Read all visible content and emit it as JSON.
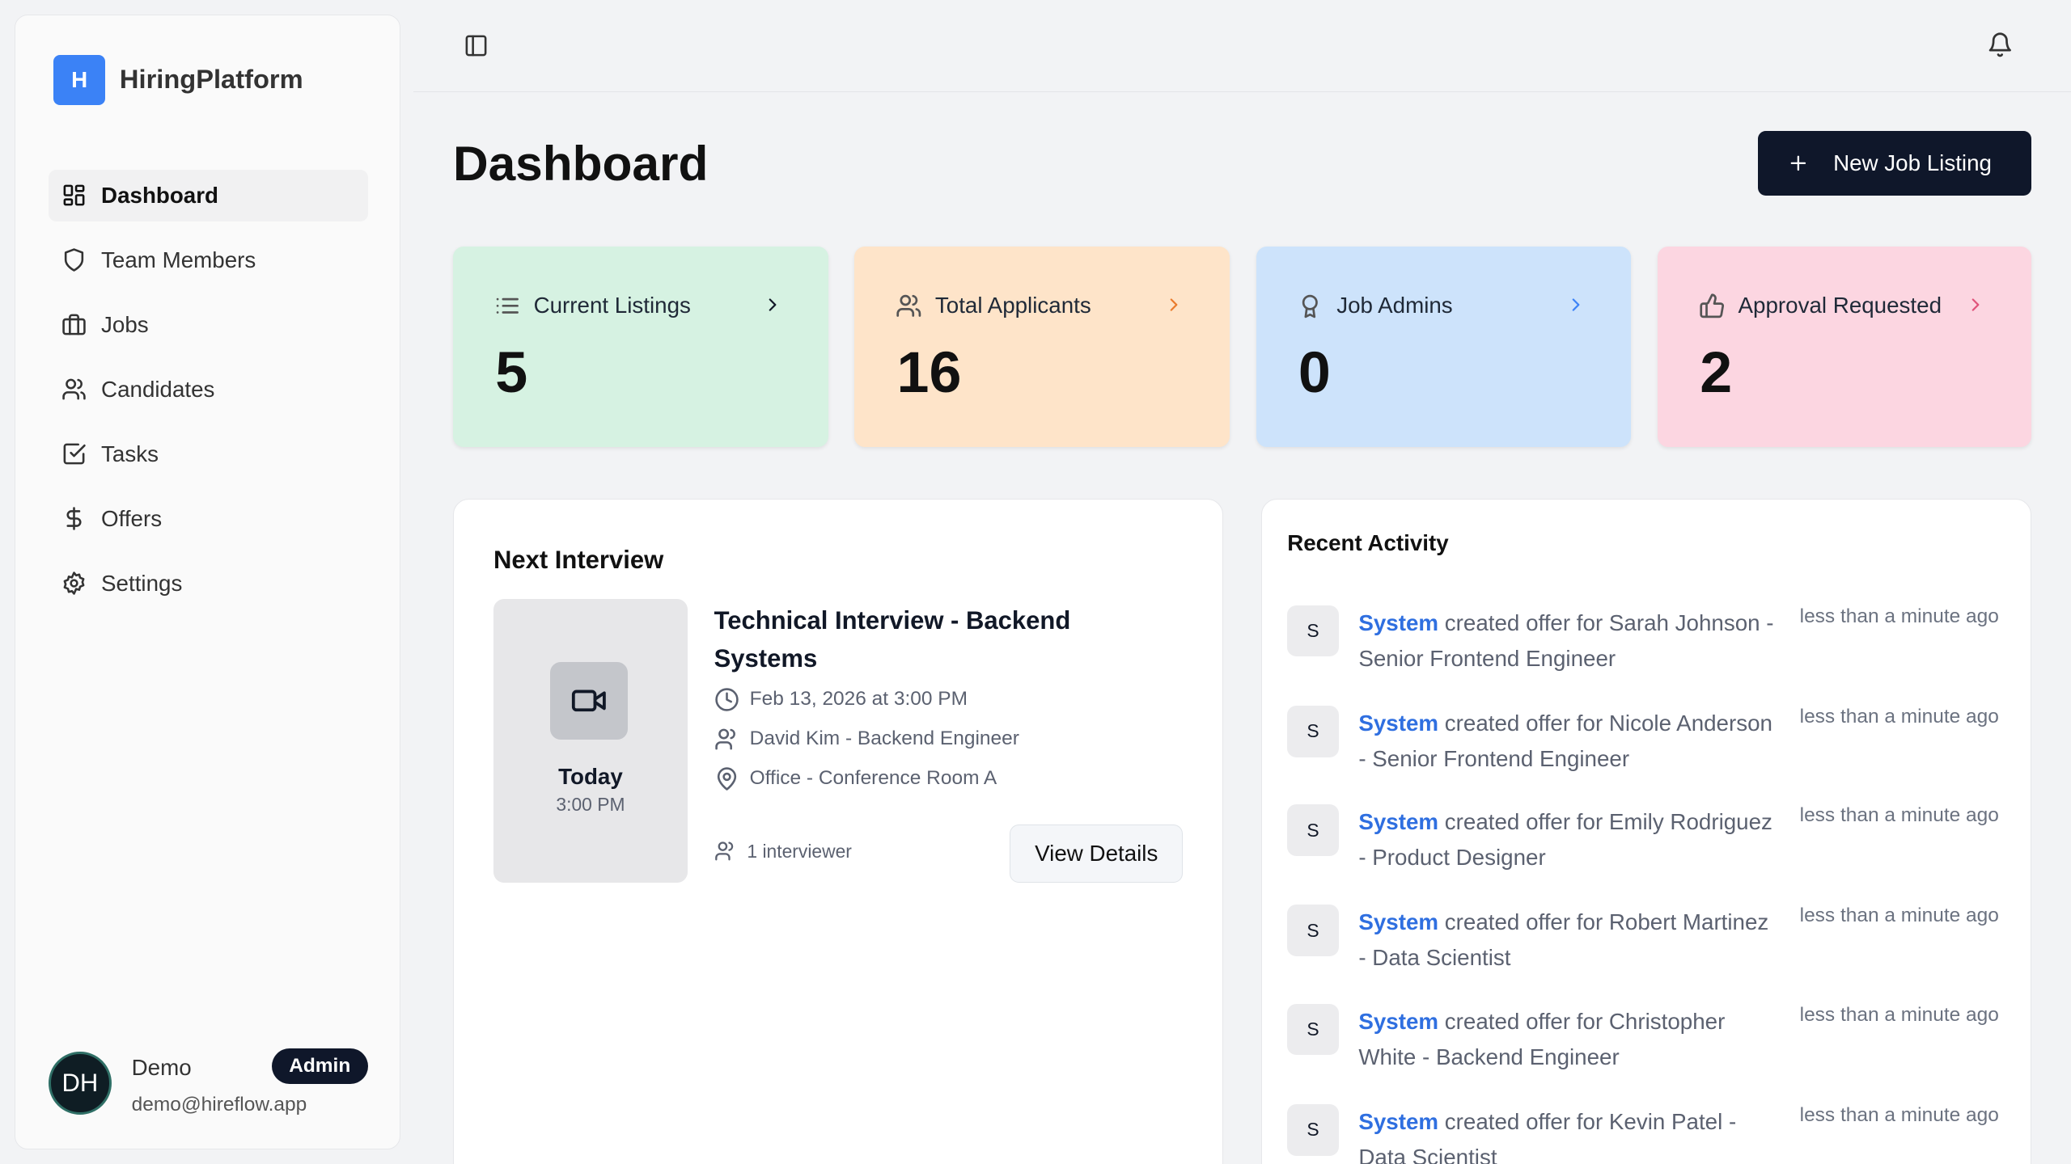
{
  "app": {
    "logo_letter": "H",
    "name": "HiringPlatform"
  },
  "sidebar": {
    "items": [
      {
        "label": "Dashboard",
        "icon": "layout-grid-icon",
        "active": true
      },
      {
        "label": "Team Members",
        "icon": "shield-icon"
      },
      {
        "label": "Jobs",
        "icon": "briefcase-icon"
      },
      {
        "label": "Candidates",
        "icon": "users-icon"
      },
      {
        "label": "Tasks",
        "icon": "check-square-icon"
      },
      {
        "label": "Offers",
        "icon": "dollar-icon"
      },
      {
        "label": "Settings",
        "icon": "gear-icon"
      }
    ]
  },
  "user": {
    "initials": "DH",
    "name": "Demo",
    "role": "Admin",
    "email": "demo@hireflow.app"
  },
  "header": {
    "title": "Dashboard",
    "new_button": "New Job Listing"
  },
  "stats": [
    {
      "label": "Current Listings",
      "value": "5",
      "color": "#d6f2e2",
      "icon": "list-icon"
    },
    {
      "label": "Total Applicants",
      "value": "16",
      "color": "#fee4c9",
      "icon": "users-icon"
    },
    {
      "label": "Job Admins",
      "value": "0",
      "color": "#cde3fb",
      "icon": "award-icon"
    },
    {
      "label": "Approval Requested",
      "value": "2",
      "color": "#fcd6e1",
      "icon": "thumbs-up-icon"
    }
  ],
  "next_interview": {
    "title": "Next Interview",
    "day": "Today",
    "time": "3:00 PM",
    "name_line1": "Technical Interview - Backend",
    "name_line2": "Systems",
    "datetime": "Feb 13, 2026 at 3:00 PM",
    "candidate": "David Kim - Backend Engineer",
    "location": "Office - Conference Room A",
    "interviewers": "1 interviewer",
    "details_button": "View Details"
  },
  "recent_activity": {
    "title": "Recent Activity",
    "items": [
      {
        "avatar": "S",
        "actor": "System",
        "text": "created offer for Sarah Johnson - Senior Frontend Engineer",
        "time": "less than a minute ago"
      },
      {
        "avatar": "S",
        "actor": "System",
        "text": "created offer for Nicole Anderson - Senior Frontend Engineer",
        "time": "less than a minute ago"
      },
      {
        "avatar": "S",
        "actor": "System",
        "text": "created offer for Emily Rodriguez - Product Designer",
        "time": "less than a minute ago"
      },
      {
        "avatar": "S",
        "actor": "System",
        "text": "created offer for Robert Martinez - Data Scientist",
        "time": "less than a minute ago"
      },
      {
        "avatar": "S",
        "actor": "System",
        "text": "created offer for Christopher White - Backend Engineer",
        "time": "less than a minute ago"
      },
      {
        "avatar": "S",
        "actor": "System",
        "text": "created offer for Kevin Patel - Data Scientist",
        "time": "less than a minute ago"
      }
    ]
  }
}
